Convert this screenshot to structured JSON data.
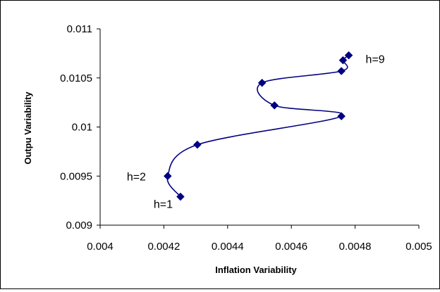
{
  "chart_data": {
    "type": "scatter",
    "title": "",
    "xlabel": "Inflation Variability",
    "ylabel": "Outpu Variability",
    "xlim": [
      0.004,
      0.005
    ],
    "ylim": [
      0.009,
      0.011
    ],
    "x_ticks": [
      "0.004",
      "0.0042",
      "0.0044",
      "0.0046",
      "0.0048",
      "0.005"
    ],
    "y_ticks": [
      "0.009",
      "0.0095",
      "0.01",
      "0.0105",
      "0.011"
    ],
    "grid": false,
    "legend": "none",
    "series": [
      {
        "color": "#000080",
        "marker": "diamond",
        "line": "smooth",
        "points": [
          {
            "h": 1,
            "x": 0.004252,
            "y": 0.00929
          },
          {
            "h": 2,
            "x": 0.004212,
            "y": 0.0095
          },
          {
            "h": 3,
            "x": 0.004305,
            "y": 0.00982
          },
          {
            "h": 4,
            "x": 0.004757,
            "y": 0.01011
          },
          {
            "h": 5,
            "x": 0.004547,
            "y": 0.01022
          },
          {
            "h": 6,
            "x": 0.004508,
            "y": 0.01045
          },
          {
            "h": 7,
            "x": 0.004757,
            "y": 0.01057
          },
          {
            "h": 8,
            "x": 0.004762,
            "y": 0.01068
          },
          {
            "h": 9,
            "x": 0.00478,
            "y": 0.01073
          }
        ]
      }
    ],
    "annotations": [
      {
        "text": "h=1",
        "point": 0
      },
      {
        "text": "h=2",
        "point": 1
      },
      {
        "text": "h=9",
        "point": 8
      }
    ]
  }
}
